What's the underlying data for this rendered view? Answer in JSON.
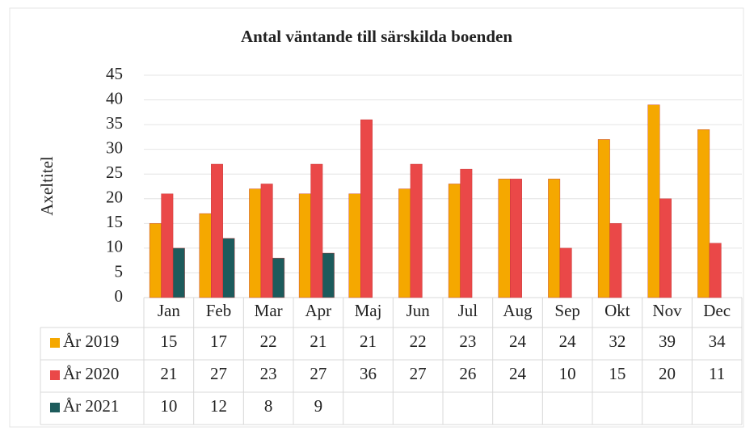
{
  "chart_data": {
    "type": "bar",
    "title": "Antal väntande till särskilda boenden",
    "y_label": "Axeltitel",
    "categories": [
      "Jan",
      "Feb",
      "Mar",
      "Apr",
      "Maj",
      "Jun",
      "Jul",
      "Aug",
      "Sep",
      "Okt",
      "Nov",
      "Dec"
    ],
    "series": [
      {
        "name": "År 2019",
        "color": "#f5a800",
        "values": [
          15,
          17,
          22,
          21,
          21,
          22,
          23,
          24,
          24,
          32,
          39,
          34
        ]
      },
      {
        "name": "År 2020",
        "color": "#ea4848",
        "values": [
          21,
          27,
          23,
          27,
          36,
          27,
          26,
          24,
          10,
          15,
          20,
          11
        ]
      },
      {
        "name": "År 2021",
        "color": "#1d5b5c",
        "values": [
          10,
          12,
          8,
          9,
          null,
          null,
          null,
          null,
          null,
          null,
          null,
          null
        ]
      }
    ],
    "ylim": [
      0,
      45
    ],
    "yticks": [
      0,
      5,
      10,
      15,
      20,
      25,
      30,
      35,
      40,
      45
    ],
    "grid": true,
    "data_table": true
  }
}
